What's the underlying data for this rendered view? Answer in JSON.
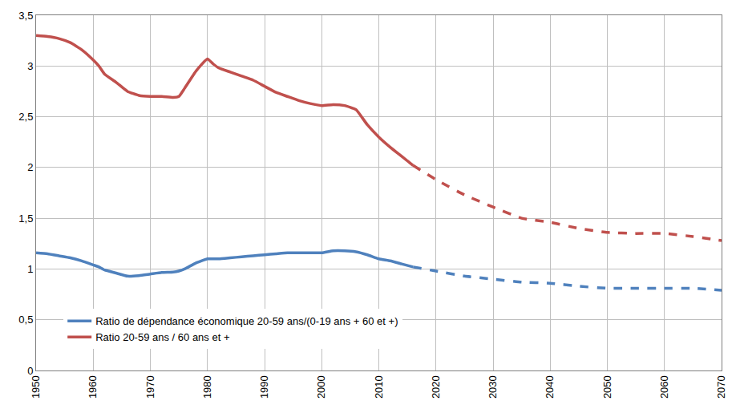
{
  "chart_data": {
    "type": "line",
    "x": [
      1950,
      1952,
      1954,
      1956,
      1958,
      1960,
      1961,
      1962,
      1964,
      1966,
      1968,
      1970,
      1972,
      1974,
      1975,
      1976,
      1978,
      1980,
      1981,
      1982,
      1984,
      1986,
      1988,
      1990,
      1992,
      1994,
      1996,
      1998,
      2000,
      2002,
      2004,
      2006,
      2008,
      2010,
      2012,
      2014,
      2016,
      2020,
      2025,
      2030,
      2035,
      2040,
      2045,
      2050,
      2055,
      2060,
      2065,
      2070
    ],
    "series": [
      {
        "name": "Ratio de dépendance économique 20-59 ans/(0-19 ans + 60 et +)",
        "color": "#4f81bd",
        "line_style": "solid",
        "values": [
          1.16,
          1.15,
          1.13,
          1.11,
          1.08,
          1.04,
          1.02,
          0.99,
          0.96,
          0.93,
          0.935,
          0.95,
          0.965,
          0.97,
          0.98,
          1.0,
          1.06,
          1.1,
          1.1,
          1.1,
          1.11,
          1.12,
          1.13,
          1.14,
          1.15,
          1.16,
          1.16,
          1.16,
          1.16,
          1.18,
          1.18,
          1.17,
          1.14,
          1.1,
          1.08,
          1.05,
          1.02,
          null,
          null,
          null,
          null,
          null,
          null,
          null,
          null,
          null,
          null,
          null
        ]
      },
      {
        "name": "Ratio 20-59 ans / 60 ans et +",
        "color": "#c0504d",
        "line_style": "solid",
        "values": [
          3.3,
          3.29,
          3.27,
          3.23,
          3.16,
          3.06,
          3.0,
          2.92,
          2.84,
          2.75,
          2.71,
          2.7,
          2.7,
          2.69,
          2.7,
          2.78,
          2.95,
          3.07,
          3.02,
          2.98,
          2.94,
          2.9,
          2.86,
          2.8,
          2.74,
          2.7,
          2.66,
          2.63,
          2.61,
          2.62,
          2.61,
          2.57,
          2.42,
          2.3,
          2.2,
          2.11,
          2.02,
          null,
          null,
          null,
          null,
          null,
          null,
          null,
          null,
          null,
          null,
          null
        ]
      },
      {
        "name": "Ratio de dépendance économique 20-59 ans/(0-19 ans + 60 et +)",
        "color": "#4f81bd",
        "line_style": "dash",
        "values": [
          null,
          null,
          null,
          null,
          null,
          null,
          null,
          null,
          null,
          null,
          null,
          null,
          null,
          null,
          null,
          null,
          null,
          null,
          null,
          null,
          null,
          null,
          null,
          null,
          null,
          null,
          null,
          null,
          null,
          null,
          null,
          null,
          null,
          null,
          null,
          null,
          1.02,
          0.98,
          0.93,
          0.9,
          0.87,
          0.86,
          0.83,
          0.81,
          0.81,
          0.81,
          0.81,
          0.79
        ]
      },
      {
        "name": "Ratio 20-59 ans / 60 ans et +",
        "color": "#c0504d",
        "line_style": "dash",
        "values": [
          null,
          null,
          null,
          null,
          null,
          null,
          null,
          null,
          null,
          null,
          null,
          null,
          null,
          null,
          null,
          null,
          null,
          null,
          null,
          null,
          null,
          null,
          null,
          null,
          null,
          null,
          null,
          null,
          null,
          null,
          null,
          null,
          null,
          null,
          null,
          null,
          2.02,
          1.88,
          1.73,
          1.61,
          1.5,
          1.46,
          1.4,
          1.36,
          1.35,
          1.35,
          1.32,
          1.28
        ]
      }
    ],
    "xlim": [
      1950,
      2070
    ],
    "xticks": [
      1950,
      1960,
      1970,
      1980,
      1990,
      2000,
      2010,
      2020,
      2030,
      2040,
      2050,
      2060,
      2070
    ],
    "ylim": [
      0,
      3.5
    ],
    "yticks": [
      0,
      {
        "value": 0.5,
        "label": "0,5"
      },
      1,
      {
        "value": 1.5,
        "label": "1,5"
      },
      2,
      {
        "value": 2.5,
        "label": "2,5"
      },
      3,
      {
        "value": 3.5,
        "label": "3,5"
      }
    ],
    "grid": true,
    "legend": "lower left"
  }
}
